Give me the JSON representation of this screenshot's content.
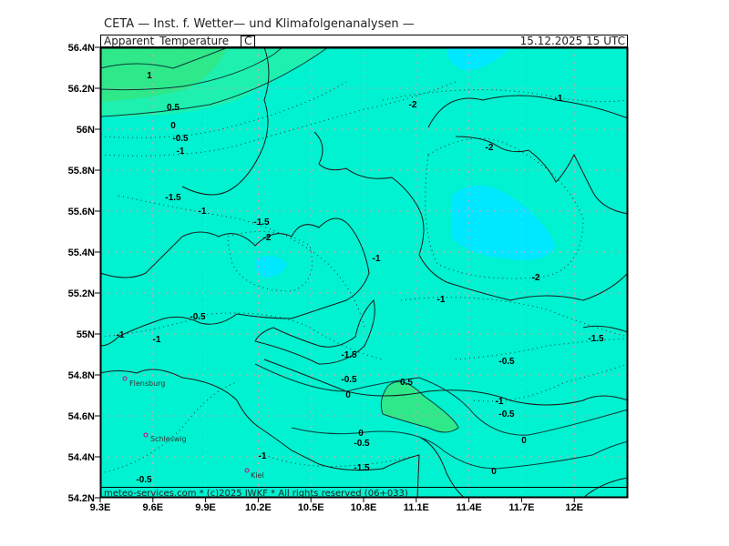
{
  "header": {
    "institute": "CETA — Inst. f. Wetter— und Klimafolgenanalysen —",
    "parameter": "Apparent_Temperature_",
    "unit": "C",
    "valid_time": "15.12.2025  15 UTC"
  },
  "footer": {
    "credit": "meteo-services.com * (c)2025 IWKF * All rights reserved (06+033)"
  },
  "axes": {
    "lat_labels": [
      "56.4N",
      "56.2N",
      "56N",
      "55.8N",
      "55.6N",
      "55.4N",
      "55.2N",
      "55N",
      "54.8N",
      "54.6N",
      "54.4N",
      "54.2N"
    ],
    "lon_labels": [
      "9.3E",
      "9.6E",
      "9.9E",
      "10.2E",
      "10.5E",
      "10.8E",
      "11.1E",
      "11.4E",
      "11.7E",
      "12E"
    ]
  },
  "places": [
    "Flensburg",
    "Schleswig",
    "Kiel"
  ],
  "contour_labels": [
    "1",
    "0.5",
    "0",
    "-0.5",
    "-1",
    "-1.5",
    "-1",
    "-1.5",
    "-2",
    "-2",
    "-1",
    "-2",
    "-1",
    "-2",
    "-1",
    "-0.5",
    "-1",
    "-1",
    "-1.5",
    "-0.5",
    "0",
    "0.5",
    "-0.5",
    "-1",
    "-0.5",
    "-1.5",
    "0",
    "-0.5",
    "0",
    "0",
    "-1.5",
    "-1",
    "-0.5"
  ],
  "colors": {
    "base": "#00F2D0",
    "warm": "#2EE88A",
    "cold": "#00E8FF",
    "grid": "#E0A0B0",
    "place": "#D0007A"
  }
}
